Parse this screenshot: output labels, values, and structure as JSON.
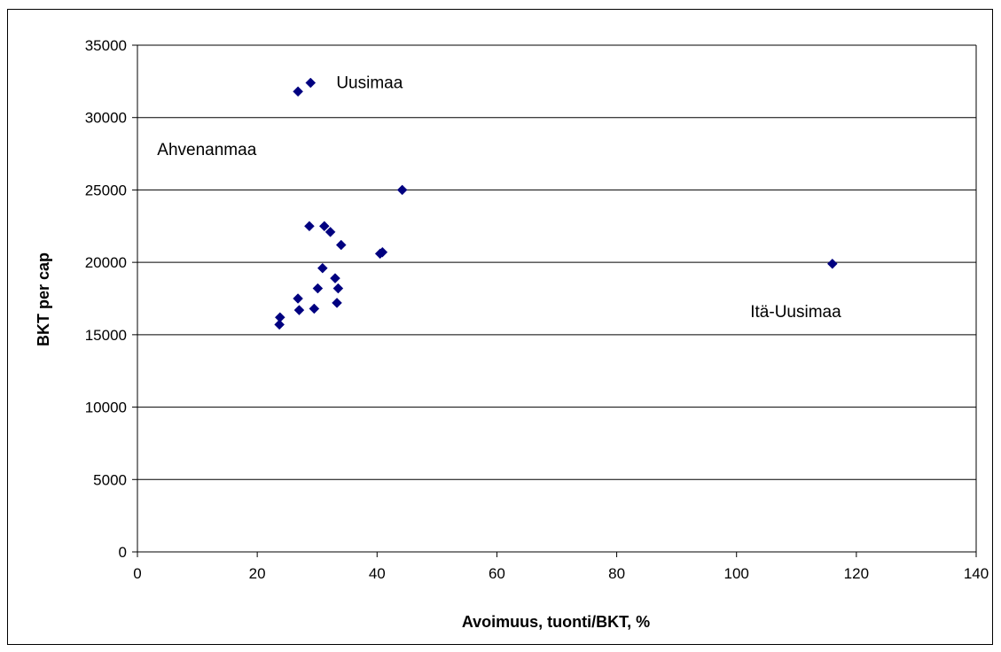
{
  "chart_data": {
    "type": "scatter",
    "title": "",
    "xlabel": "Avoimuus, tuonti/BKT, %",
    "ylabel": "BKT per cap",
    "xlim": [
      0,
      140
    ],
    "ylim": [
      0,
      35000
    ],
    "x_ticks": [
      0,
      20,
      40,
      60,
      80,
      100,
      120,
      140
    ],
    "y_ticks": [
      0,
      5000,
      10000,
      15000,
      20000,
      25000,
      30000,
      35000
    ],
    "grid": "horizontal major gridlines",
    "legend": "none",
    "marker": "diamond",
    "marker_color": "#000080",
    "gridline_color": "#000000",
    "points": [
      {
        "x": 26.8,
        "y": 31800
      },
      {
        "x": 28.9,
        "y": 32400
      },
      {
        "x": 44.2,
        "y": 25000
      },
      {
        "x": 28.7,
        "y": 22500
      },
      {
        "x": 31.2,
        "y": 22500
      },
      {
        "x": 32.2,
        "y": 22100
      },
      {
        "x": 34.0,
        "y": 21200
      },
      {
        "x": 40.5,
        "y": 20600
      },
      {
        "x": 40.9,
        "y": 20700
      },
      {
        "x": 30.9,
        "y": 19600
      },
      {
        "x": 33.0,
        "y": 18900
      },
      {
        "x": 33.5,
        "y": 18200
      },
      {
        "x": 30.1,
        "y": 18200
      },
      {
        "x": 26.8,
        "y": 17500
      },
      {
        "x": 33.3,
        "y": 17200
      },
      {
        "x": 27.0,
        "y": 16700
      },
      {
        "x": 29.5,
        "y": 16800
      },
      {
        "x": 23.8,
        "y": 16200
      },
      {
        "x": 23.7,
        "y": 15700
      },
      {
        "x": 116.0,
        "y": 19900
      }
    ],
    "annotations": [
      {
        "text": "Uusimaa",
        "x": 33.2,
        "y": 32450
      },
      {
        "text": "Ahvenanmaa",
        "x": 3.3,
        "y": 27850
      },
      {
        "text": "Itä-Uusimaa",
        "x": 102.3,
        "y": 16650
      }
    ]
  }
}
